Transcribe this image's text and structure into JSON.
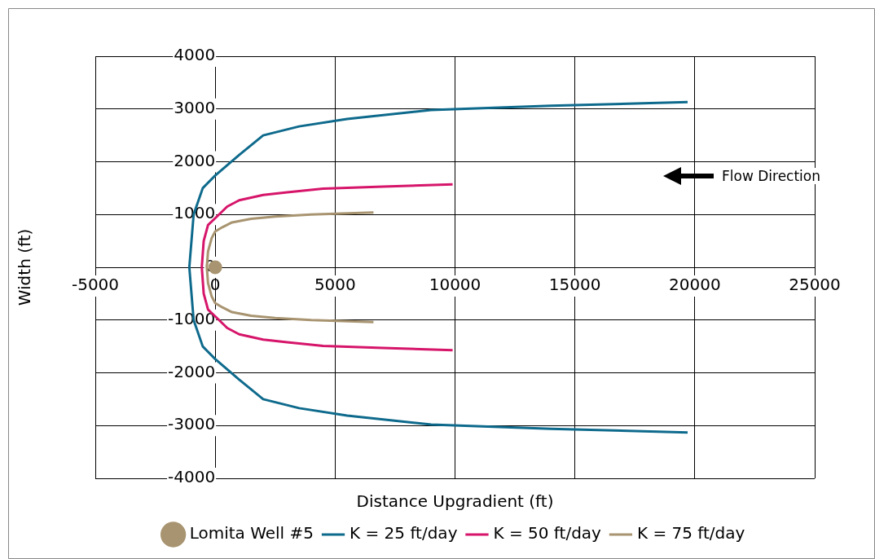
{
  "chart_data": {
    "type": "line",
    "xlabel": "Distance Upgradient (ft)",
    "ylabel": "Width (ft)",
    "xlim": [
      -5000,
      25000
    ],
    "xticks": [
      -5000,
      0,
      5000,
      10000,
      15000,
      20000,
      25000
    ],
    "ylim": [
      -4000,
      4000
    ],
    "yticks": [
      -4000,
      -3000,
      -2000,
      -1000,
      0,
      1000,
      2000,
      3000,
      4000
    ],
    "grid": true,
    "legend": "bottom",
    "line_style": "solid",
    "annotations": [
      "Flow Direction"
    ],
    "series": [
      {
        "name": "Lomita Well #5",
        "type": "scatter",
        "marker": "circle",
        "color": "#a89470",
        "x": [
          0
        ],
        "values": [
          0
        ]
      },
      {
        "name": "K = 25 ft/day",
        "marker": "none",
        "color": "#0e6a8c",
        "x": [
          19700,
          14000,
          9000,
          5500,
          3500,
          2000,
          1000,
          0,
          -520,
          -900,
          -1080,
          -900,
          -520,
          0,
          1000,
          2000,
          3500,
          5500,
          9000,
          14000,
          19700
        ],
        "values": [
          3130,
          3060,
          2980,
          2810,
          2670,
          2500,
          2130,
          1740,
          1500,
          1000,
          0,
          -1000,
          -1500,
          -1740,
          -2130,
          -2500,
          -2670,
          -2810,
          -2980,
          -3060,
          -3130
        ]
      },
      {
        "name": "K = 50 ft/day",
        "marker": "none",
        "color": "#d6156a",
        "x": [
          9900,
          7000,
          4500,
          3000,
          2000,
          1000,
          500,
          0,
          -300,
          -480,
          -560,
          -480,
          -300,
          0,
          500,
          1000,
          2000,
          3000,
          4500,
          7000,
          9900
        ],
        "values": [
          1570,
          1530,
          1490,
          1420,
          1370,
          1270,
          1150,
          930,
          800,
          500,
          0,
          -500,
          -800,
          -930,
          -1150,
          -1270,
          -1370,
          -1420,
          -1490,
          -1530,
          -1570
        ]
      },
      {
        "name": "K = 75 ft/day",
        "marker": "none",
        "color": "#a89470",
        "x": [
          6600,
          4000,
          2500,
          1500,
          700,
          300,
          0,
          -150,
          -300,
          -350,
          -300,
          -150,
          0,
          300,
          700,
          1500,
          2500,
          4000,
          6600
        ],
        "values": [
          1040,
          1000,
          960,
          920,
          850,
          760,
          680,
          550,
          300,
          0,
          -300,
          -550,
          -680,
          -760,
          -850,
          -920,
          -960,
          -1000,
          -1040
        ]
      }
    ]
  }
}
